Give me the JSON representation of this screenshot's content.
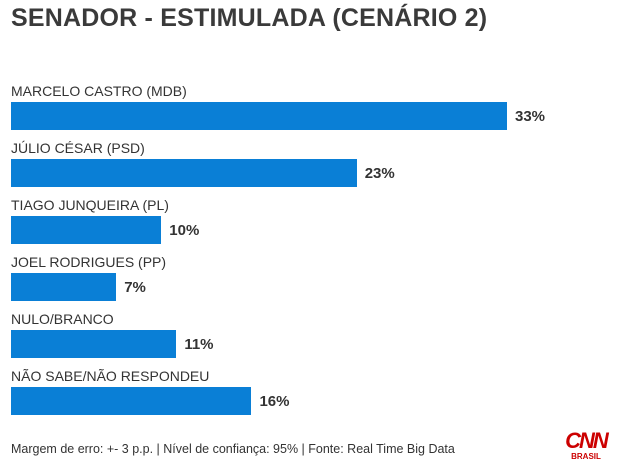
{
  "chart_data": {
    "type": "bar",
    "orientation": "horizontal",
    "title": "SENADOR - ESTIMULADA (CENÁRIO 2)",
    "categories": [
      "MARCELO CASTRO (MDB)",
      "JÚLIO CÉSAR (PSD)",
      "TIAGO JUNQUEIRA (PL)",
      "JOEL RODRIGUES (PP)",
      "NULO/BRANCO",
      "NÃO SABE/NÃO RESPONDEU"
    ],
    "values": [
      33,
      23,
      10,
      7,
      11,
      16
    ],
    "value_labels": [
      "33%",
      "23%",
      "10%",
      "7%",
      "11%",
      "16%"
    ],
    "unit": "%",
    "bar_color": "#0a7fd6",
    "grid": false
  },
  "footer": "Margem de erro: +- 3 p.p. | Nível de confiança: 95% | Fonte: Real Time Big Data",
  "logo": {
    "text": "CNN",
    "sub": "BRASIL",
    "color": "#cc0000"
  }
}
